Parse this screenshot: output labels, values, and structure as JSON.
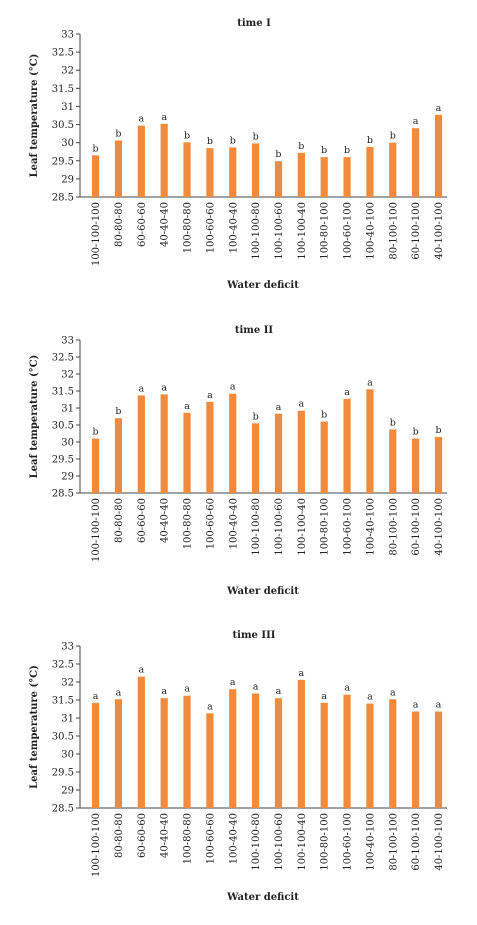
{
  "chart_data": [
    {
      "type": "bar",
      "title": "time I",
      "xlabel": "Water deficit",
      "ylabel": "Leaf temperature (°C)",
      "ylim": [
        28.5,
        33
      ],
      "yticks": [
        "33",
        "32.5",
        "32",
        "31.5",
        "31",
        "30.5",
        "30",
        "29.5",
        "29",
        "28.5"
      ],
      "ytick_values": [
        33,
        32.5,
        32,
        31.5,
        31,
        30.5,
        30,
        29.5,
        29,
        28.5
      ],
      "categories": [
        "100-100-100",
        "80-80-80",
        "60-60-60",
        "40-40-40",
        "100-80-80",
        "100-60-60",
        "100-40-40",
        "100-100-80",
        "100-100-60",
        "100-100-40",
        "100-80-100",
        "100-60-100",
        "100-40-100",
        "80-100-100",
        "60-100-100",
        "40-100-100"
      ],
      "values": [
        29.65,
        30.06,
        30.47,
        30.52,
        30.01,
        29.85,
        29.87,
        29.98,
        29.49,
        29.72,
        29.6,
        29.6,
        29.88,
        30.0,
        30.4,
        30.77
      ],
      "labels": [
        "b",
        "b",
        "a",
        "a",
        "b",
        "b",
        "b",
        "b",
        "b",
        "b",
        "b",
        "b",
        "b",
        "b",
        "a",
        "a"
      ],
      "color": "#F28A3C",
      "grid": false
    },
    {
      "type": "bar",
      "title": "time II",
      "xlabel": "Water deficit",
      "ylabel": "Leaf temperature (°C)",
      "ylim": [
        28.5,
        33
      ],
      "yticks": [
        "33",
        "32.5",
        "32",
        "31.5",
        "31",
        "30.5",
        "30",
        "29.5",
        "29",
        "28.5"
      ],
      "ytick_values": [
        33,
        32.5,
        32,
        31.5,
        31,
        30.5,
        30,
        29.5,
        29,
        28.5
      ],
      "categories": [
        "100-100-100",
        "80-80-80",
        "60-60-60",
        "40-40-40",
        "100-80-80",
        "100-60-60",
        "100-40-40",
        "100-100-80",
        "100-100-60",
        "100-100-40",
        "100-80-100",
        "100-60-100",
        "100-40-100",
        "80-100-100",
        "60-100-100",
        "40-100-100"
      ],
      "values": [
        30.1,
        30.7,
        31.37,
        31.4,
        30.86,
        31.18,
        31.42,
        30.55,
        30.83,
        30.92,
        30.6,
        31.27,
        31.55,
        30.37,
        30.1,
        30.15
      ],
      "labels": [
        "b",
        "b",
        "a",
        "a",
        "a",
        "a",
        "a",
        "b",
        "a",
        "a",
        "b",
        "a",
        "a",
        "b",
        "b",
        "b"
      ],
      "color": "#F28A3C",
      "grid": false
    },
    {
      "type": "bar",
      "title": "time III",
      "xlabel": "Water deficit",
      "ylabel": "Leaf temperature (°C)",
      "ylim": [
        28.5,
        33
      ],
      "yticks": [
        "33",
        "32.5",
        "32",
        "31.5",
        "31",
        "30.5",
        "30",
        "29.5",
        "29",
        "28.5"
      ],
      "ytick_values": [
        33,
        32.5,
        32,
        31.5,
        31,
        30.5,
        30,
        29.5,
        29,
        28.5
      ],
      "categories": [
        "100-100-100",
        "80-80-80",
        "60-60-60",
        "40-40-40",
        "100-80-80",
        "100-60-60",
        "100-40-40",
        "100-100-80",
        "100-100-60",
        "100-100-40",
        "100-80-100",
        "100-60-100",
        "100-40-100",
        "80-100-100",
        "60-100-100",
        "40-100-100"
      ],
      "values": [
        31.42,
        31.52,
        32.15,
        31.55,
        31.62,
        31.13,
        31.8,
        31.68,
        31.55,
        32.06,
        31.42,
        31.65,
        31.4,
        31.52,
        31.18,
        31.18
      ],
      "labels": [
        "a",
        "a",
        "a",
        "a",
        "a",
        "a",
        "a",
        "a",
        "a",
        "a",
        "a",
        "a",
        "a",
        "a",
        "a",
        "a"
      ],
      "color": "#F28A3C",
      "grid": false
    }
  ]
}
